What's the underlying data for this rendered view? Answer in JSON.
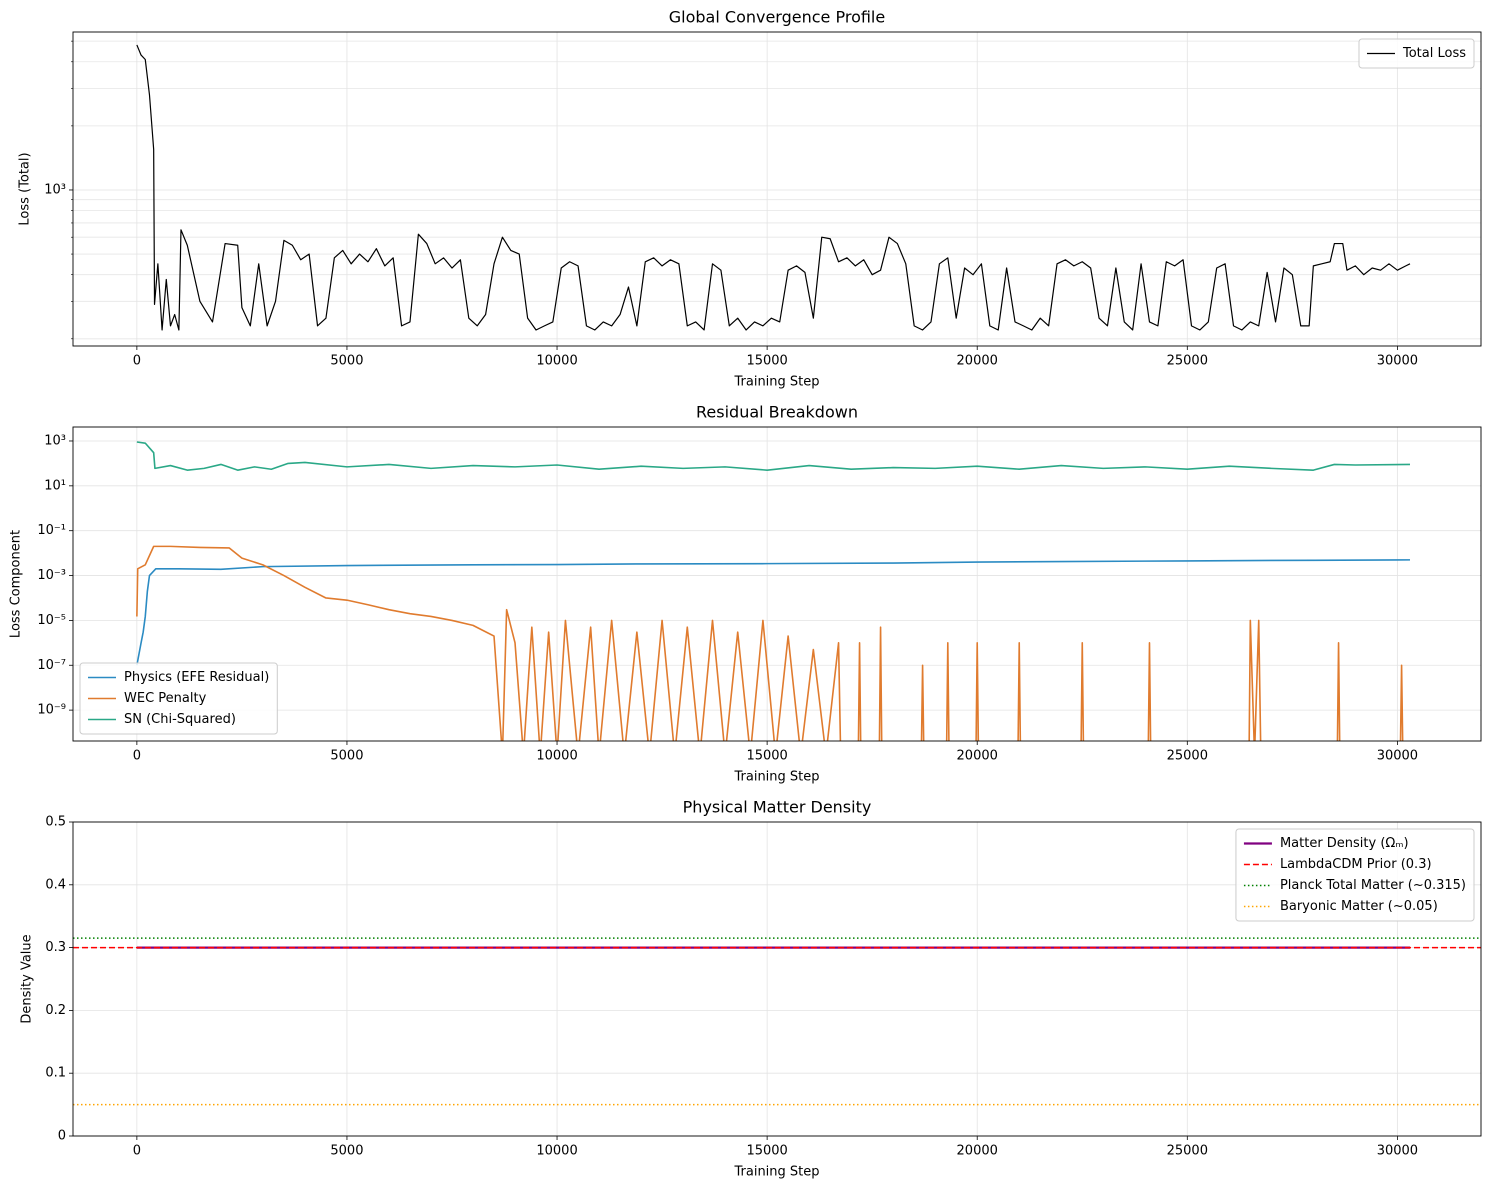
{
  "chart_data": [
    {
      "type": "line",
      "title": "Global Convergence Profile",
      "xlabel": "Training Step",
      "ylabel": "Loss (Total)",
      "yscale": "log",
      "grid": true,
      "legend": "upper right",
      "xlim": [
        -1520,
        31990
      ],
      "ylim": [
        185,
        5520
      ],
      "xticks": [
        0,
        5000,
        10000,
        15000,
        20000,
        25000,
        30000
      ],
      "yticks": [
        {
          "value": 1000,
          "label": "10³"
        }
      ],
      "minor_yticks": [
        200,
        300,
        400,
        500,
        600,
        700,
        800,
        900,
        2000,
        3000,
        4000,
        5000
      ],
      "series": [
        {
          "name": "Total Loss",
          "color": "#000000",
          "linewidth": 1.2,
          "linestyle": "solid",
          "x": [
            0,
            100,
            200,
            300,
            400,
            420,
            500,
            600,
            700,
            800,
            900,
            1000,
            1050,
            1200,
            1500,
            1800,
            2100,
            2400,
            2500,
            2700,
            2900,
            3100,
            3300,
            3500,
            3700,
            3900,
            4100,
            4300,
            4500,
            4700,
            4900,
            5100,
            5300,
            5500,
            5700,
            5900,
            6100,
            6300,
            6500,
            6700,
            6900,
            7100,
            7300,
            7500,
            7700,
            7900,
            8100,
            8300,
            8500,
            8700,
            8900,
            9100,
            9300,
            9500,
            9700,
            9900,
            10100,
            10300,
            10500,
            10700,
            10900,
            11100,
            11300,
            11500,
            11700,
            11900,
            12100,
            12300,
            12500,
            12700,
            12900,
            13100,
            13300,
            13500,
            13700,
            13900,
            14100,
            14300,
            14500,
            14700,
            14900,
            15100,
            15300,
            15500,
            15700,
            15900,
            16100,
            16300,
            16500,
            16700,
            16900,
            17100,
            17300,
            17500,
            17700,
            17900,
            18100,
            18300,
            18500,
            18700,
            18900,
            19100,
            19300,
            19500,
            19700,
            19900,
            20100,
            20300,
            20500,
            20700,
            20900,
            21100,
            21300,
            21500,
            21700,
            21900,
            22100,
            22300,
            22500,
            22700,
            22900,
            23100,
            23300,
            23500,
            23700,
            23900,
            24100,
            24300,
            24500,
            24700,
            24900,
            25100,
            25300,
            25500,
            25700,
            25900,
            26100,
            26300,
            26500,
            26700,
            26900,
            27100,
            27300,
            27500,
            27700,
            27900,
            28000,
            28200,
            28400,
            28500,
            28700,
            28800,
            29000,
            29200,
            29400,
            29600,
            29800,
            30000,
            30200,
            30300
          ],
          "values": [
            4800,
            4300,
            4100,
            2800,
            1550,
            290,
            450,
            220,
            380,
            230,
            260,
            220,
            650,
            550,
            300,
            240,
            560,
            550,
            280,
            230,
            450,
            230,
            300,
            580,
            550,
            470,
            500,
            230,
            250,
            480,
            520,
            450,
            500,
            460,
            530,
            440,
            480,
            230,
            240,
            620,
            560,
            450,
            480,
            430,
            470,
            250,
            230,
            260,
            450,
            600,
            520,
            500,
            250,
            220,
            230,
            240,
            430,
            460,
            440,
            230,
            220,
            240,
            230,
            260,
            350,
            230,
            460,
            480,
            440,
            470,
            450,
            230,
            240,
            220,
            450,
            420,
            230,
            250,
            220,
            240,
            230,
            250,
            240,
            420,
            440,
            410,
            250,
            600,
            590,
            460,
            480,
            440,
            470,
            400,
            420,
            600,
            560,
            450,
            230,
            220,
            240,
            450,
            480,
            250,
            430,
            400,
            450,
            230,
            220,
            430,
            240,
            230,
            220,
            250,
            230,
            450,
            470,
            440,
            460,
            430,
            250,
            230,
            430,
            240,
            220,
            450,
            240,
            230,
            460,
            440,
            470,
            230,
            220,
            240,
            430,
            450,
            230,
            220,
            240,
            230,
            410,
            240,
            430,
            400,
            230,
            230,
            440,
            450,
            460,
            560,
            560,
            420,
            440,
            400,
            430,
            420,
            450,
            420,
            440,
            450
          ]
        }
      ]
    },
    {
      "type": "line",
      "title": "Residual Breakdown",
      "xlabel": "Training Step",
      "ylabel": "Loss Component",
      "yscale": "log",
      "grid": true,
      "legend": "lower left",
      "xlim": [
        -1520,
        31990
      ],
      "ylim": [
        4.2e-11,
        4200
      ],
      "xticks": [
        0,
        5000,
        10000,
        15000,
        20000,
        25000,
        30000
      ],
      "yticks": [
        {
          "value": 1e-09,
          "label": "10⁻⁹"
        },
        {
          "value": 1e-07,
          "label": "10⁻⁷"
        },
        {
          "value": 1e-05,
          "label": "10⁻⁵"
        },
        {
          "value": 0.001,
          "label": "10⁻³"
        },
        {
          "value": 0.1,
          "label": "10⁻¹"
        },
        {
          "value": 10,
          "label": "10¹"
        },
        {
          "value": 1000,
          "label": "10³"
        }
      ],
      "series": [
        {
          "name": "Physics (EFE Residual)",
          "color": "#2b8bc3",
          "linewidth": 1.6,
          "linestyle": "solid",
          "x": [
            0,
            100,
            150,
            200,
            250,
            300,
            450,
            1000,
            2000,
            3000,
            5000,
            8000,
            10000,
            12000,
            15000,
            18000,
            20000,
            22000,
            25000,
            28000,
            30300
          ],
          "values": [
            1e-07,
            1e-06,
            3e-06,
            1.5e-05,
            0.0002,
            0.001,
            0.002,
            0.002,
            0.0019,
            0.0025,
            0.0028,
            0.003,
            0.0031,
            0.0033,
            0.0034,
            0.0036,
            0.004,
            0.0042,
            0.0045,
            0.0048,
            0.005
          ]
        },
        {
          "name": "WEC Penalty",
          "color": "#e07b2e",
          "linewidth": 1.6,
          "linestyle": "solid",
          "x": [
            0,
            20,
            200,
            400,
            800,
            1500,
            2200,
            2500,
            3000,
            3500,
            4000,
            4500,
            5000,
            5500,
            6000,
            6500,
            7000,
            7500,
            8000,
            8500,
            8700,
            8800,
            9000,
            9200,
            9400,
            9600,
            9800,
            10000,
            10200,
            10500,
            10800,
            11000,
            11300,
            11600,
            11900,
            12200,
            12500,
            12800,
            13100,
            13400,
            13700,
            14000,
            14300,
            14600,
            14900,
            15200,
            15500,
            15800,
            16100,
            16400,
            16700,
            16750,
            17170,
            17200,
            17230,
            17670,
            17700,
            17730,
            18670,
            18700,
            18730,
            19270,
            19300,
            19330,
            19970,
            20000,
            20030,
            20970,
            21000,
            21030,
            22470,
            22500,
            22530,
            24070,
            24100,
            24130,
            26470,
            26500,
            26600,
            26700,
            26750,
            28570,
            28600,
            28630,
            30070,
            30100,
            30130
          ],
          "values": [
            1.5e-05,
            0.002,
            0.003,
            0.02,
            0.02,
            0.018,
            0.017,
            0.006,
            0.003,
            0.001,
            0.0003,
            0.0001,
            8e-05,
            5e-05,
            3e-05,
            2e-05,
            1.5e-05,
            1e-05,
            6e-06,
            2e-06,
            1e-11,
            3e-05,
            1e-06,
            1e-11,
            5e-06,
            1e-11,
            3e-06,
            1e-11,
            1e-05,
            1e-11,
            5e-06,
            1e-11,
            1e-05,
            1e-11,
            3e-06,
            1e-11,
            1e-05,
            1e-11,
            5e-06,
            1e-11,
            1e-05,
            1e-11,
            3e-06,
            1e-11,
            1e-05,
            1e-11,
            2e-06,
            1e-11,
            5e-07,
            1e-11,
            1e-06,
            1e-11,
            1e-11,
            1e-06,
            1e-11,
            1e-11,
            5e-06,
            1e-11,
            1e-11,
            1e-07,
            1e-11,
            1e-11,
            1e-06,
            1e-11,
            1e-11,
            1e-06,
            1e-11,
            1e-11,
            1e-06,
            1e-11,
            1e-11,
            1e-06,
            1e-11,
            1e-11,
            1e-06,
            1e-11,
            1e-11,
            1e-05,
            1e-11,
            1e-05,
            1e-11,
            1e-11,
            1e-06,
            1e-11,
            1e-11,
            1e-07,
            1e-11
          ]
        },
        {
          "name": "SN (Chi-Squared)",
          "color": "#2aa887",
          "linewidth": 1.6,
          "linestyle": "solid",
          "x": [
            0,
            200,
            400,
            430,
            800,
            1200,
            1600,
            2000,
            2400,
            2800,
            3200,
            3600,
            4000,
            5000,
            6000,
            7000,
            8000,
            9000,
            10000,
            11000,
            12000,
            13000,
            14000,
            15000,
            16000,
            17000,
            18000,
            19000,
            20000,
            21000,
            22000,
            23000,
            24000,
            25000,
            26000,
            27000,
            28000,
            28500,
            29000,
            30300
          ],
          "values": [
            900,
            800,
            300,
            60,
            80,
            50,
            60,
            90,
            50,
            70,
            55,
            100,
            110,
            70,
            90,
            60,
            80,
            70,
            85,
            55,
            75,
            60,
            70,
            50,
            80,
            55,
            65,
            60,
            75,
            55,
            80,
            60,
            70,
            55,
            75,
            60,
            50,
            90,
            85,
            90
          ]
        }
      ]
    },
    {
      "type": "line",
      "title": "Physical Matter Density",
      "xlabel": "Training Step",
      "ylabel": "Density Value",
      "yscale": "linear",
      "grid": true,
      "legend": "upper right",
      "xlim": [
        -1520,
        31990
      ],
      "ylim": [
        0,
        0.5
      ],
      "xticks": [
        0,
        5000,
        10000,
        15000,
        20000,
        25000,
        30000
      ],
      "yticks": [
        0.0,
        0.1,
        0.2,
        0.3,
        0.4,
        0.5
      ],
      "series": [
        {
          "name": "Matter Density (Ωₘ)",
          "color": "#800080",
          "linewidth": 2.2,
          "linestyle": "solid",
          "x": [
            0,
            30300
          ],
          "values": [
            0.3,
            0.3
          ]
        }
      ],
      "hlines": [
        {
          "name": "LambdaCDM Prior (0.3)",
          "color": "#ff0000",
          "linestyle": "dashed",
          "value": 0.3
        },
        {
          "name": "Planck Total Matter (~0.315)",
          "color": "#008000",
          "linestyle": "dotted",
          "value": 0.315
        },
        {
          "name": "Baryonic Matter (~0.05)",
          "color": "#ffa500",
          "linestyle": "dotted",
          "value": 0.05
        }
      ]
    }
  ]
}
